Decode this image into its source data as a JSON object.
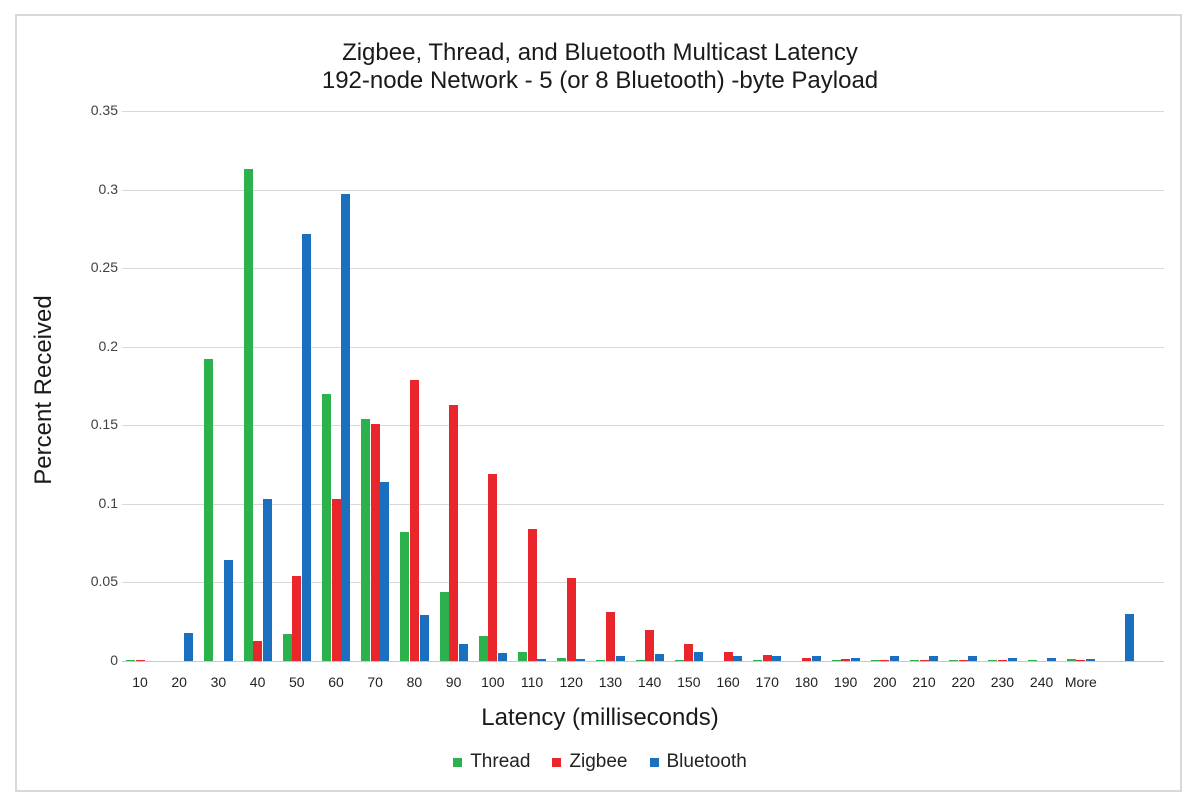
{
  "chart_data": {
    "type": "bar",
    "title": "Zigbee, Thread, and Bluetooth Multicast Latency",
    "subtitle": "192-node Network - 5 (or 8 Bluetooth) -byte Payload",
    "xlabel": "Latency (milliseconds)",
    "ylabel": "Percent Received",
    "ylim": [
      0,
      0.35
    ],
    "yticks": [
      "0",
      "0.05",
      "0.1",
      "0.15",
      "0.2",
      "0.25",
      "0.3",
      "0.35"
    ],
    "grid": true,
    "legend_position": "bottom",
    "categories": [
      "10",
      "20",
      "30",
      "40",
      "50",
      "60",
      "70",
      "80",
      "90",
      "100",
      "110",
      "120",
      "130",
      "140",
      "150",
      "160",
      "170",
      "180",
      "190",
      "200",
      "210",
      "220",
      "230",
      "240",
      "More",
      ""
    ],
    "series": [
      {
        "name": "Thread",
        "color": "#2bb24c",
        "values": [
          0.0005,
          0,
          0.192,
          0.313,
          0.017,
          0.17,
          0.154,
          0.082,
          0.044,
          0.016,
          0.006,
          0.002,
          0.0005,
          0.0005,
          0.0005,
          0,
          0.0005,
          0,
          0.0005,
          0.0005,
          0.0005,
          0.0005,
          0.0005,
          0.0005,
          0.001,
          0
        ]
      },
      {
        "name": "Zigbee",
        "color": "#e8262b",
        "values": [
          0.0005,
          0,
          0,
          0.013,
          0.054,
          0.103,
          0.151,
          0.179,
          0.163,
          0.119,
          0.084,
          0.053,
          0.031,
          0.02,
          0.011,
          0.006,
          0.004,
          0.002,
          0.0015,
          0.0005,
          0.0005,
          0.0005,
          0.0005,
          0,
          0.0005,
          0
        ]
      },
      {
        "name": "Bluetooth",
        "color": "#1a6fbf",
        "values": [
          0,
          0.018,
          0.064,
          0.103,
          0.272,
          0.297,
          0.114,
          0.029,
          0.011,
          0.005,
          0.0015,
          0.0015,
          0.003,
          0.0045,
          0.0055,
          0.003,
          0.003,
          0.003,
          0.002,
          0.003,
          0.003,
          0.003,
          0.002,
          0.002,
          0.0015,
          0.03
        ]
      }
    ]
  },
  "legend": {
    "items": [
      {
        "label": "Thread",
        "color": "#2bb24c"
      },
      {
        "label": "Zigbee",
        "color": "#e8262b"
      },
      {
        "label": "Bluetooth",
        "color": "#1a6fbf"
      }
    ]
  }
}
